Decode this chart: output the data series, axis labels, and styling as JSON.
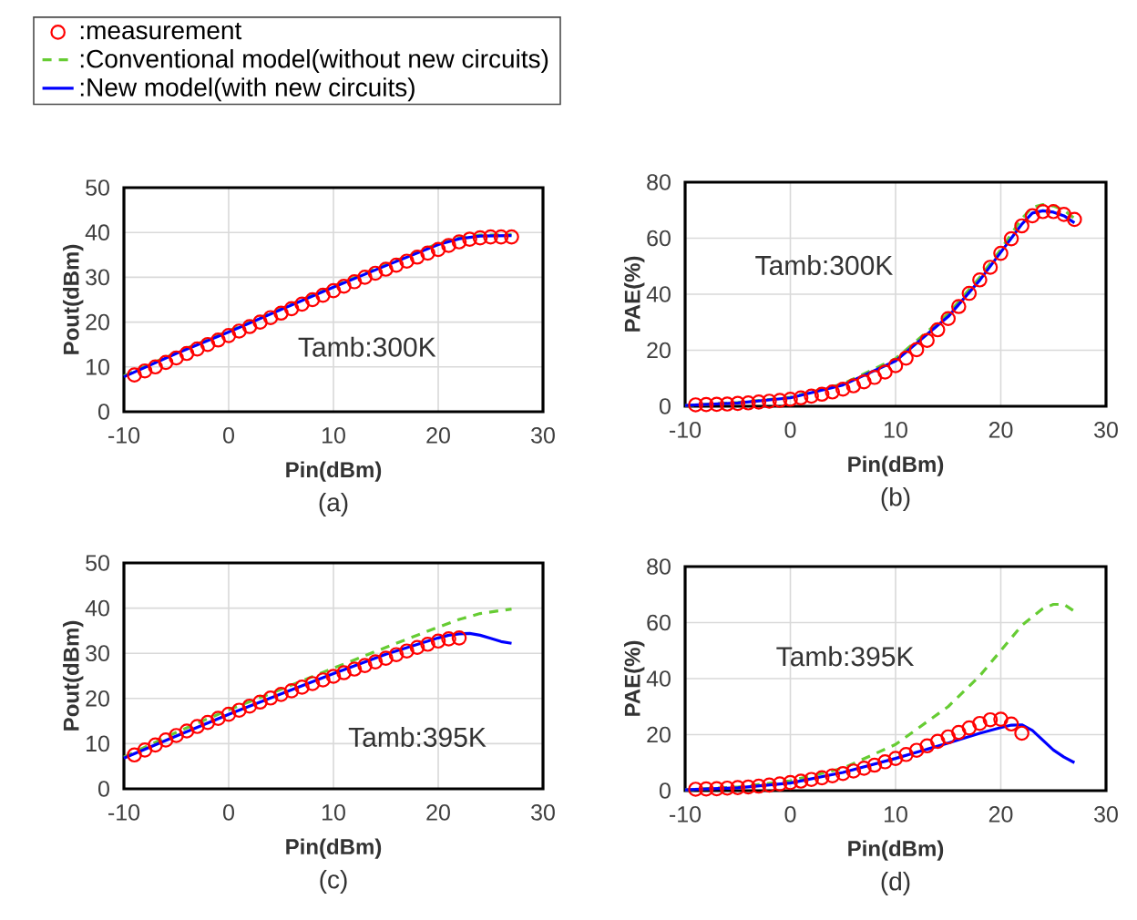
{
  "chart_data": [
    {
      "type": "line",
      "xlabel": "Pin(dBm)",
      "ylabel": "Pout(dBm)",
      "xlim": [
        -10,
        30
      ],
      "xticks": [
        -10,
        0,
        10,
        20,
        30
      ],
      "ylim": [
        0,
        50
      ],
      "yticks": [
        0,
        10,
        20,
        30,
        40,
        50
      ],
      "grid": true,
      "legend": "top left",
      "annotations": [
        "Tamb:300K",
        "(a)"
      ],
      "series": [
        {
          "type": "scatter",
          "name": ":measurement",
          "color": "#ff0000",
          "marker": "circle",
          "x": [
            -9,
            -8,
            -7,
            -6,
            -5,
            -4,
            -3,
            -2,
            -1,
            0,
            1,
            2,
            3,
            4,
            5,
            6,
            7,
            8,
            9,
            10,
            11,
            12,
            13,
            14,
            15,
            16,
            17,
            18,
            19,
            20,
            21,
            22,
            23,
            24,
            25,
            26,
            27
          ],
          "values": [
            8.2,
            9.1,
            10.0,
            11.0,
            12.0,
            13.0,
            14.0,
            15.0,
            16.0,
            17.0,
            18.0,
            19.0,
            20.0,
            21.0,
            22.0,
            23.0,
            24.0,
            25.0,
            26.0,
            27.0,
            28.0,
            29.0,
            30.0,
            30.9,
            31.8,
            32.7,
            33.6,
            34.5,
            35.4,
            36.2,
            37.1,
            37.9,
            38.5,
            38.8,
            39.0,
            39.0,
            39.0
          ]
        },
        {
          "type": "line",
          "name": ":Conventional model(without new circuits)",
          "color": "#66cc33",
          "line_style": "dashed",
          "x": [
            -10,
            -5,
            0,
            5,
            10,
            15,
            20,
            22,
            24,
            27
          ],
          "values": [
            8.0,
            13.2,
            18.0,
            23.0,
            28.0,
            32.8,
            37.5,
            38.8,
            39.4,
            39.5
          ]
        },
        {
          "type": "line",
          "name": ":New model(with new circuits)",
          "color": "#0000ff",
          "line_style": "solid",
          "x": [
            -10,
            -5,
            0,
            5,
            10,
            15,
            20,
            22,
            24,
            27
          ],
          "values": [
            7.8,
            13.0,
            17.8,
            22.8,
            27.8,
            32.6,
            37.3,
            38.6,
            39.2,
            39.3
          ]
        }
      ]
    },
    {
      "type": "line",
      "xlabel": "Pin(dBm)",
      "ylabel": "PAE(%)",
      "xlim": [
        -10,
        30
      ],
      "xticks": [
        -10,
        0,
        10,
        20,
        30
      ],
      "ylim": [
        0,
        80
      ],
      "yticks": [
        0,
        20,
        40,
        60,
        80
      ],
      "grid": true,
      "annotations": [
        "Tamb:300K",
        "(b)"
      ],
      "series": [
        {
          "type": "scatter",
          "color": "#ff0000",
          "marker": "circle",
          "x": [
            -9,
            -8,
            -7,
            -6,
            -5,
            -4,
            -3,
            -2,
            -1,
            0,
            1,
            2,
            3,
            4,
            5,
            6,
            7,
            8,
            9,
            10,
            11,
            12,
            13,
            14,
            15,
            16,
            17,
            18,
            19,
            20,
            21,
            22,
            23,
            24,
            25,
            26,
            27
          ],
          "values": [
            0.5,
            0.6,
            0.7,
            0.8,
            1.0,
            1.2,
            1.5,
            1.8,
            2.1,
            2.5,
            3.0,
            3.6,
            4.3,
            5.1,
            6.1,
            7.3,
            8.7,
            10.3,
            12.2,
            14.5,
            17.2,
            20.2,
            23.5,
            27.3,
            31.3,
            35.6,
            40.3,
            45.1,
            49.6,
            54.6,
            59.8,
            64.4,
            68.0,
            69.5,
            69.5,
            68.5,
            66.7
          ]
        },
        {
          "type": "line",
          "color": "#66cc33",
          "line_style": "dashed",
          "x": [
            -10,
            -5,
            0,
            5,
            10,
            15,
            18,
            20,
            22,
            23,
            24,
            25,
            26,
            27
          ],
          "values": [
            0.3,
            1.3,
            3.2,
            8.0,
            17.0,
            33.0,
            46.0,
            56.0,
            67.0,
            71.0,
            72.0,
            71.5,
            70.0,
            67.0
          ]
        },
        {
          "type": "line",
          "color": "#0000ff",
          "line_style": "solid",
          "x": [
            -10,
            -5,
            0,
            5,
            10,
            15,
            18,
            20,
            22,
            23,
            24,
            25,
            26,
            27
          ],
          "values": [
            0.3,
            1.2,
            3.0,
            7.6,
            16.2,
            32.0,
            45.0,
            55.0,
            65.0,
            69.0,
            69.8,
            69.3,
            68.0,
            65.5
          ]
        }
      ]
    },
    {
      "type": "line",
      "xlabel": "Pin(dBm)",
      "ylabel": "Pout(dBm)",
      "xlim": [
        -10,
        30
      ],
      "xticks": [
        -10,
        0,
        10,
        20,
        30
      ],
      "ylim": [
        0,
        50
      ],
      "yticks": [
        0,
        10,
        20,
        30,
        40,
        50
      ],
      "grid": true,
      "annotations": [
        "Tamb:395K",
        "(c)"
      ],
      "series": [
        {
          "type": "scatter",
          "color": "#ff0000",
          "marker": "circle",
          "x": [
            -9,
            -8,
            -7,
            -6,
            -5,
            -4,
            -3,
            -2,
            -1,
            0,
            1,
            2,
            3,
            4,
            5,
            6,
            7,
            8,
            9,
            10,
            11,
            12,
            13,
            14,
            15,
            16,
            17,
            18,
            19,
            20,
            21,
            22
          ],
          "values": [
            7.5,
            8.6,
            9.7,
            10.8,
            11.8,
            12.8,
            13.8,
            14.7,
            15.6,
            16.5,
            17.4,
            18.3,
            19.2,
            20.1,
            20.9,
            21.7,
            22.5,
            23.3,
            24.1,
            24.9,
            25.7,
            26.5,
            27.3,
            28.1,
            28.9,
            29.7,
            30.5,
            31.3,
            32.0,
            32.7,
            33.2,
            33.4
          ]
        },
        {
          "type": "line",
          "color": "#66cc33",
          "line_style": "dashed",
          "x": [
            -10,
            -5,
            0,
            5,
            10,
            15,
            20,
            22,
            24,
            27
          ],
          "values": [
            7.0,
            12.5,
            17.5,
            22.0,
            26.7,
            31.3,
            35.8,
            37.5,
            38.8,
            39.8
          ]
        },
        {
          "type": "line",
          "color": "#0000ff",
          "line_style": "solid",
          "x": [
            -10,
            -5,
            0,
            5,
            10,
            15,
            20,
            21,
            22,
            23,
            24,
            25,
            26,
            27
          ],
          "values": [
            6.8,
            11.7,
            16.5,
            21.0,
            25.5,
            29.8,
            33.4,
            34.0,
            34.3,
            34.4,
            34.0,
            33.3,
            32.6,
            32.2
          ]
        }
      ]
    },
    {
      "type": "line",
      "xlabel": "Pin(dBm)",
      "ylabel": "PAE(%)",
      "xlim": [
        -10,
        30
      ],
      "xticks": [
        -10,
        0,
        10,
        20,
        30
      ],
      "ylim": [
        0,
        80
      ],
      "yticks": [
        0,
        20,
        40,
        60,
        80
      ],
      "grid": true,
      "annotations": [
        "Tamb:395K",
        "(d)"
      ],
      "series": [
        {
          "type": "scatter",
          "color": "#ff0000",
          "marker": "circle",
          "x": [
            -9,
            -8,
            -7,
            -6,
            -5,
            -4,
            -3,
            -2,
            -1,
            0,
            1,
            2,
            3,
            4,
            5,
            6,
            7,
            8,
            9,
            10,
            11,
            12,
            13,
            14,
            15,
            16,
            17,
            18,
            19,
            20,
            21,
            22
          ],
          "values": [
            0.5,
            0.6,
            0.7,
            0.9,
            1.1,
            1.3,
            1.6,
            2.0,
            2.4,
            2.9,
            3.4,
            4.0,
            4.6,
            5.3,
            6.1,
            7.0,
            8.0,
            9.1,
            10.3,
            11.5,
            12.9,
            14.4,
            16.0,
            17.6,
            19.2,
            20.8,
            22.4,
            24.0,
            25.3,
            25.5,
            23.8,
            20.5
          ]
        },
        {
          "type": "line",
          "color": "#66cc33",
          "line_style": "dashed",
          "x": [
            -10,
            -5,
            0,
            5,
            10,
            15,
            18,
            20,
            22,
            24,
            25,
            26,
            27
          ],
          "values": [
            0.3,
            1.3,
            3.5,
            8.0,
            16.5,
            30.0,
            41.0,
            50.0,
            59.0,
            65.0,
            66.5,
            66.5,
            64.0
          ]
        },
        {
          "type": "line",
          "color": "#0000ff",
          "line_style": "solid",
          "x": [
            -10,
            -5,
            0,
            5,
            10,
            15,
            18,
            20,
            21,
            22,
            23,
            24,
            25,
            26,
            27
          ],
          "values": [
            0.3,
            1.0,
            2.7,
            6.5,
            11.5,
            17.0,
            20.5,
            22.5,
            23.4,
            23.5,
            21.5,
            18.0,
            14.5,
            12.0,
            10.0
          ]
        }
      ]
    }
  ]
}
